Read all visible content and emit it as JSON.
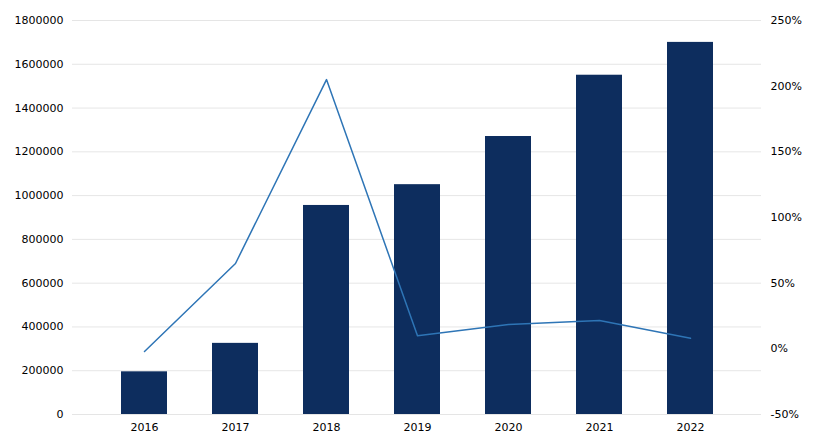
{
  "chart_data": {
    "type": "bar",
    "categories": [
      "2016",
      "2017",
      "2018",
      "2019",
      "2020",
      "2021",
      "2022"
    ],
    "series": [
      {
        "type": "bar",
        "color": "#0d2d5e",
        "values": [
          195000,
          325000,
          955000,
          1050000,
          1270000,
          1550000,
          1700000
        ]
      },
      {
        "type": "line",
        "color": "#2e75b6",
        "axis": "y2",
        "values": [
          -0.02,
          0.65,
          2.05,
          0.1,
          0.185,
          0.215,
          0.08
        ]
      }
    ],
    "ylim": [
      0,
      1800000
    ],
    "yticks": [
      0,
      200000,
      400000,
      600000,
      800000,
      1000000,
      1200000,
      1400000,
      1600000,
      1800000
    ],
    "y2lim": [
      -0.5,
      2.5
    ],
    "y2ticks": [
      {
        "value": -0.5,
        "label": "-50%"
      },
      {
        "value": 0,
        "label": "0%"
      },
      {
        "value": 0.5,
        "label": "50%"
      },
      {
        "value": 1.0,
        "label": "100%"
      },
      {
        "value": 1.5,
        "label": "150%"
      },
      {
        "value": 2.0,
        "label": "200%"
      },
      {
        "value": 2.5,
        "label": "250%"
      }
    ],
    "grid": true
  }
}
